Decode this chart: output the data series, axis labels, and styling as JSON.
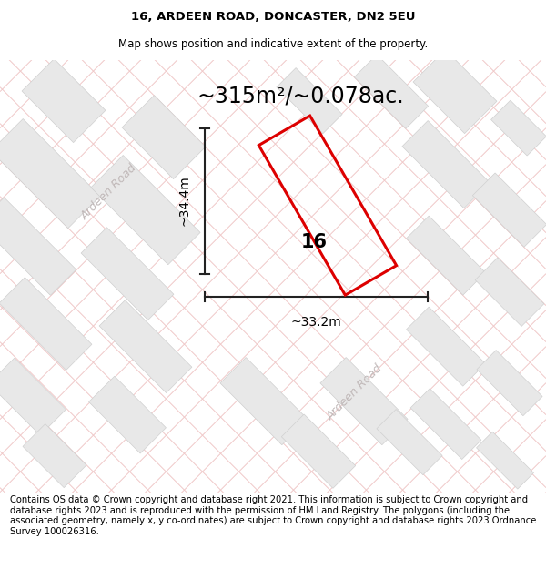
{
  "title_line1": "16, ARDEEN ROAD, DONCASTER, DN2 5EU",
  "title_line2": "Map shows position and indicative extent of the property.",
  "area_text": "~315m²/~0.078ac.",
  "width_label": "~33.2m",
  "height_label": "~34.4m",
  "property_number": "16",
  "footer_text": "Contains OS data © Crown copyright and database right 2021. This information is subject to Crown copyright and database rights 2023 and is reproduced with the permission of HM Land Registry. The polygons (including the associated geometry, namely x, y co-ordinates) are subject to Crown copyright and database rights 2023 Ordnance Survey 100026316.",
  "map_bg": "#f7f5f5",
  "grid_line_color": "#f0c8c8",
  "block_fill": "#e8e8e8",
  "block_edge": "#d0d0d0",
  "road_text_color": "#c0b8b8",
  "plot_color": "#dd0000",
  "dim_line_color": "#222222",
  "title_fontsize": 9.5,
  "subtitle_fontsize": 8.5,
  "area_fontsize": 17,
  "label_fontsize": 10,
  "number_fontsize": 15,
  "footer_fontsize": 7.2
}
